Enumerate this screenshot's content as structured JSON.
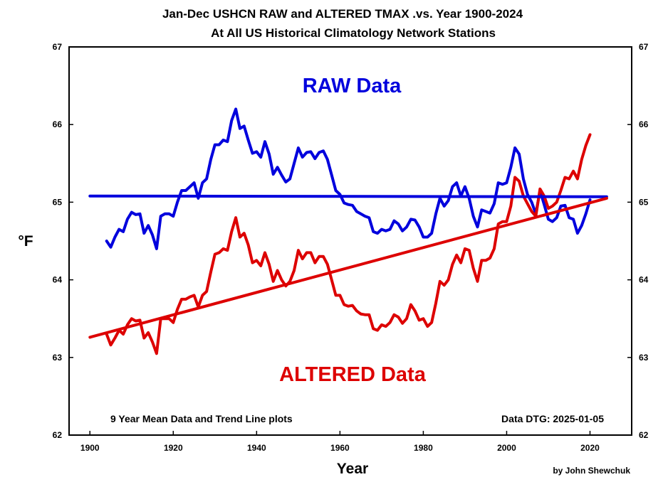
{
  "colors": {
    "raw": "#0000dd",
    "altered": "#dd0000",
    "axis": "#000000"
  },
  "chart_data": {
    "type": "line",
    "title": [
      "Jan-Dec USHCN RAW and ALTERED TMAX .vs. Year 1900-2024",
      "At All US Historical Climatology Network Stations"
    ],
    "xlabel": "Year",
    "ylabel": "°F",
    "xlim": [
      1895,
      2030
    ],
    "ylim": [
      62,
      67
    ],
    "xticks": [
      1900,
      1920,
      1940,
      1960,
      1980,
      2000,
      2020
    ],
    "yticks": [
      62,
      63,
      64,
      65,
      66,
      67
    ],
    "annotations": {
      "raw_label": "RAW Data",
      "altered_label": "ALTERED Data",
      "footnote_left": "9 Year Mean Data and Trend Line plots",
      "footnote_right": "Data DTG: 2025-01-05",
      "credit": "by John Shewchuk"
    },
    "series": [
      {
        "name": "RAW 9-year mean",
        "color": "#0000dd",
        "x": [
          1904,
          1905,
          1906,
          1907,
          1908,
          1909,
          1910,
          1911,
          1912,
          1913,
          1914,
          1915,
          1916,
          1917,
          1918,
          1919,
          1920,
          1921,
          1922,
          1923,
          1924,
          1925,
          1926,
          1927,
          1928,
          1929,
          1930,
          1931,
          1932,
          1933,
          1934,
          1935,
          1936,
          1937,
          1938,
          1939,
          1940,
          1941,
          1942,
          1943,
          1944,
          1945,
          1946,
          1947,
          1948,
          1949,
          1950,
          1951,
          1952,
          1953,
          1954,
          1955,
          1956,
          1957,
          1958,
          1959,
          1960,
          1961,
          1962,
          1963,
          1964,
          1965,
          1966,
          1967,
          1968,
          1969,
          1970,
          1971,
          1972,
          1973,
          1974,
          1975,
          1976,
          1977,
          1978,
          1979,
          1980,
          1981,
          1982,
          1983,
          1984,
          1985,
          1986,
          1987,
          1988,
          1989,
          1990,
          1991,
          1992,
          1993,
          1994,
          1995,
          1996,
          1997,
          1998,
          1999,
          2000,
          2001,
          2002,
          2003,
          2004,
          2005,
          2006,
          2007,
          2008,
          2009,
          2010,
          2011,
          2012,
          2013,
          2014,
          2015,
          2016,
          2017,
          2018,
          2019,
          2020
        ],
        "values": [
          64.5,
          64.42,
          64.55,
          64.65,
          64.62,
          64.78,
          64.87,
          64.84,
          64.85,
          64.6,
          64.7,
          64.58,
          64.4,
          64.82,
          64.85,
          64.85,
          64.82,
          65.0,
          65.15,
          65.15,
          65.2,
          65.25,
          65.05,
          65.25,
          65.3,
          65.55,
          65.74,
          65.74,
          65.8,
          65.78,
          66.05,
          66.2,
          65.95,
          65.98,
          65.8,
          65.63,
          65.65,
          65.58,
          65.78,
          65.62,
          65.36,
          65.45,
          65.35,
          65.26,
          65.3,
          65.5,
          65.7,
          65.58,
          65.64,
          65.65,
          65.56,
          65.64,
          65.66,
          65.55,
          65.35,
          65.15,
          65.1,
          64.99,
          64.97,
          64.96,
          64.88,
          64.85,
          64.82,
          64.8,
          64.62,
          64.6,
          64.65,
          64.63,
          64.65,
          64.76,
          64.72,
          64.63,
          64.68,
          64.78,
          64.77,
          64.68,
          64.55,
          64.55,
          64.6,
          64.85,
          65.05,
          64.95,
          65.02,
          65.2,
          65.25,
          65.08,
          65.2,
          65.05,
          64.82,
          64.68,
          64.9,
          64.88,
          64.86,
          64.98,
          65.25,
          65.23,
          65.25,
          65.45,
          65.7,
          65.62,
          65.3,
          65.1,
          65.0,
          64.85,
          65.15,
          64.97,
          64.78,
          64.75,
          64.8,
          64.95,
          64.96,
          64.8,
          64.78,
          64.6,
          64.7,
          64.85,
          65.03
        ]
      },
      {
        "name": "ALTERED 9-year mean",
        "color": "#dd0000",
        "x": [
          1904,
          1905,
          1906,
          1907,
          1908,
          1909,
          1910,
          1911,
          1912,
          1913,
          1914,
          1915,
          1916,
          1917,
          1918,
          1919,
          1920,
          1921,
          1922,
          1923,
          1924,
          1925,
          1926,
          1927,
          1928,
          1929,
          1930,
          1931,
          1932,
          1933,
          1934,
          1935,
          1936,
          1937,
          1938,
          1939,
          1940,
          1941,
          1942,
          1943,
          1944,
          1945,
          1946,
          1947,
          1948,
          1949,
          1950,
          1951,
          1952,
          1953,
          1954,
          1955,
          1956,
          1957,
          1958,
          1959,
          1960,
          1961,
          1962,
          1963,
          1964,
          1965,
          1966,
          1967,
          1968,
          1969,
          1970,
          1971,
          1972,
          1973,
          1974,
          1975,
          1976,
          1977,
          1978,
          1979,
          1980,
          1981,
          1982,
          1983,
          1984,
          1985,
          1986,
          1987,
          1988,
          1989,
          1990,
          1991,
          1992,
          1993,
          1994,
          1995,
          1996,
          1997,
          1998,
          1999,
          2000,
          2001,
          2002,
          2003,
          2004,
          2005,
          2006,
          2007,
          2008,
          2009,
          2010,
          2011,
          2012,
          2013,
          2014,
          2015,
          2016,
          2017,
          2018,
          2019,
          2020
        ],
        "values": [
          63.3,
          63.16,
          63.25,
          63.35,
          63.3,
          63.42,
          63.5,
          63.47,
          63.48,
          63.25,
          63.32,
          63.2,
          63.05,
          63.5,
          63.5,
          63.5,
          63.45,
          63.62,
          63.75,
          63.75,
          63.78,
          63.8,
          63.65,
          63.8,
          63.85,
          64.1,
          64.33,
          64.35,
          64.4,
          64.38,
          64.62,
          64.8,
          64.55,
          64.6,
          64.45,
          64.22,
          64.25,
          64.18,
          64.35,
          64.2,
          63.98,
          64.12,
          64.0,
          63.92,
          63.98,
          64.12,
          64.38,
          64.27,
          64.35,
          64.35,
          64.22,
          64.3,
          64.3,
          64.2,
          64.0,
          63.8,
          63.8,
          63.68,
          63.66,
          63.67,
          63.6,
          63.56,
          63.55,
          63.55,
          63.37,
          63.35,
          63.42,
          63.4,
          63.45,
          63.55,
          63.52,
          63.44,
          63.5,
          63.68,
          63.6,
          63.48,
          63.5,
          63.4,
          63.45,
          63.7,
          63.98,
          63.93,
          64.0,
          64.2,
          64.32,
          64.22,
          64.4,
          64.38,
          64.15,
          63.98,
          64.25,
          64.25,
          64.28,
          64.4,
          64.72,
          64.75,
          64.75,
          64.95,
          65.32,
          65.27,
          65.08,
          64.98,
          64.88,
          64.82,
          65.17,
          65.08,
          64.92,
          64.95,
          65.0,
          65.15,
          65.32,
          65.3,
          65.4,
          65.3,
          65.55,
          65.73,
          65.87
        ]
      },
      {
        "name": "RAW trend",
        "color": "#0000dd",
        "x": [
          1900,
          2024
        ],
        "values": [
          65.08,
          65.07
        ]
      },
      {
        "name": "ALTERED trend",
        "color": "#dd0000",
        "x": [
          1900,
          2024
        ],
        "values": [
          63.26,
          65.05
        ]
      }
    ]
  }
}
